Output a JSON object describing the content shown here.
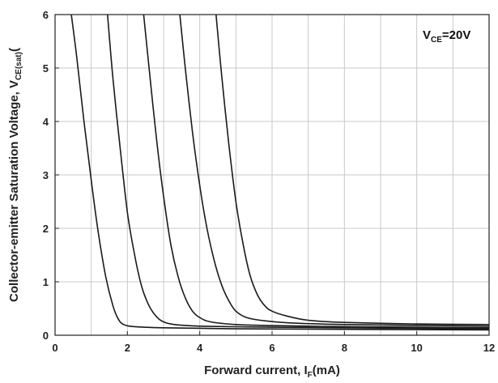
{
  "chart_data": {
    "type": "line",
    "xlabel": "Forward current, I",
    "xlabel_sub": "F",
    "xlabel_unit": "(mA)",
    "ylabel": "Collector-emitter Saturation Voltage, V",
    "ylabel_sub": "CE(sat)",
    "ylabel_unit": "(",
    "annotation": {
      "main": "V",
      "sub": "CE",
      "value": "=20V",
      "placement": "top-right"
    },
    "xlim": [
      0,
      12
    ],
    "ylim": [
      0,
      6
    ],
    "xticks": [
      0,
      2,
      4,
      6,
      8,
      10,
      12
    ],
    "yticks": [
      0,
      1,
      2,
      3,
      4,
      5,
      6
    ],
    "grid": true,
    "line_color": "#1a1a1a",
    "series": [
      {
        "x": [
          0.45,
          0.6,
          0.8,
          1.0,
          1.2,
          1.4,
          1.6,
          1.75,
          1.9,
          2.2,
          3,
          5,
          8,
          12
        ],
        "y": [
          6.0,
          5.2,
          4.0,
          2.9,
          1.9,
          1.1,
          0.55,
          0.3,
          0.2,
          0.16,
          0.14,
          0.12,
          0.11,
          0.1
        ]
      },
      {
        "x": [
          1.45,
          1.6,
          1.8,
          2.0,
          2.2,
          2.4,
          2.6,
          2.8,
          3.0,
          3.3,
          4,
          6,
          8,
          12
        ],
        "y": [
          6.0,
          4.8,
          3.5,
          2.3,
          1.5,
          0.9,
          0.55,
          0.35,
          0.25,
          0.2,
          0.17,
          0.15,
          0.14,
          0.12
        ]
      },
      {
        "x": [
          2.45,
          2.6,
          2.8,
          3.0,
          3.2,
          3.4,
          3.6,
          3.8,
          4.0,
          4.3,
          5,
          6,
          8,
          12
        ],
        "y": [
          6.0,
          5.0,
          3.7,
          2.6,
          1.7,
          1.1,
          0.7,
          0.45,
          0.33,
          0.25,
          0.2,
          0.18,
          0.16,
          0.14
        ]
      },
      {
        "x": [
          3.45,
          3.6,
          3.8,
          4.0,
          4.2,
          4.4,
          4.6,
          4.8,
          5.0,
          5.3,
          5.8,
          6.5,
          8,
          12
        ],
        "y": [
          6.0,
          5.0,
          3.8,
          2.8,
          2.0,
          1.4,
          0.95,
          0.65,
          0.45,
          0.33,
          0.27,
          0.23,
          0.2,
          0.17
        ]
      },
      {
        "x": [
          4.45,
          4.6,
          4.8,
          5.0,
          5.2,
          5.4,
          5.6,
          5.8,
          6.0,
          6.4,
          7,
          8,
          10,
          12
        ],
        "y": [
          6.0,
          4.9,
          3.6,
          2.5,
          1.7,
          1.1,
          0.75,
          0.55,
          0.45,
          0.36,
          0.28,
          0.24,
          0.21,
          0.2
        ]
      }
    ]
  }
}
